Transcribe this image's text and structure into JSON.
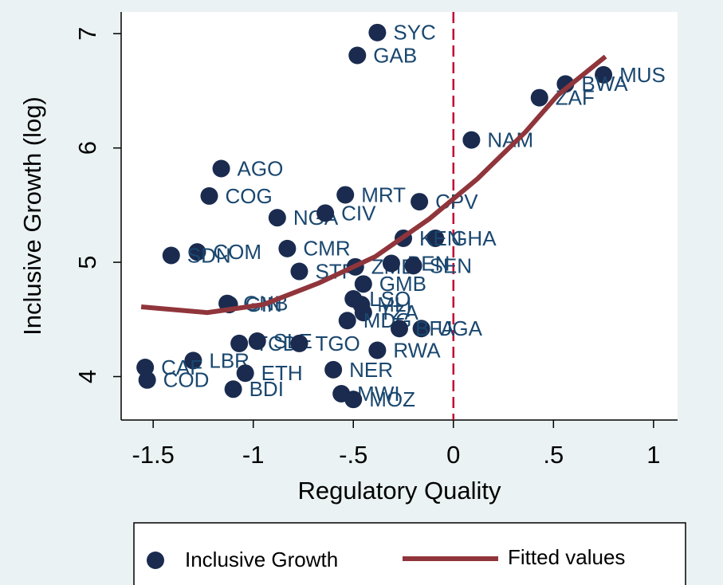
{
  "chart_data": {
    "type": "scatter",
    "x_label": "Regulatory Quality",
    "y_label": "Inclusive Growth (log)",
    "xlim": [
      -1.66,
      1.12
    ],
    "ylim": [
      3.62,
      7.19
    ],
    "xticks": [
      -1.5,
      -1,
      {
        "value": -0.5,
        "label": "-.5"
      },
      0,
      {
        "value": 0.5,
        "label": ".5"
      },
      1
    ],
    "yticks": [
      4,
      5,
      6,
      7
    ],
    "xline": 0,
    "xline_color": "#c10534",
    "series": [
      {
        "name": "Inclusive Growth",
        "type": "scatter",
        "color": "#1a2b4f",
        "label_color": "#1a476f",
        "point_labels": [
          "SYC",
          "GAB",
          "MUS",
          "BWA",
          "ZAF",
          "NAM",
          "AGO",
          "COG",
          "MRT",
          "CPV",
          "NGA",
          "CIV",
          "GHA",
          "KEN",
          "CMR",
          "COM",
          "SDN",
          "STP",
          "ZMB",
          "BEN",
          "SEN",
          "GMB",
          "GNB",
          "GIN",
          "LSO",
          "MLI",
          "TZA",
          "MDG",
          "TCD",
          "SLE",
          "TGO",
          "UGA",
          "BFA",
          "RWA",
          "LBR",
          "CAF",
          "COD",
          "ETH",
          "NER",
          "BDI",
          "MWI",
          "MOZ"
        ],
        "x": [
          -0.38,
          -0.48,
          0.75,
          0.56,
          0.43,
          0.09,
          -1.16,
          -1.22,
          -0.54,
          -0.17,
          -0.88,
          -0.64,
          -0.09,
          -0.25,
          -0.83,
          -1.28,
          -1.41,
          -0.77,
          -0.49,
          -0.31,
          -0.2,
          -0.45,
          -1.13,
          -1.12,
          -0.5,
          -0.46,
          -0.45,
          -0.53,
          -1.07,
          -0.98,
          -0.77,
          -0.16,
          -0.27,
          -0.38,
          -1.3,
          -1.54,
          -1.53,
          -1.04,
          -0.6,
          -1.1,
          -0.56,
          -0.5
        ],
        "values": [
          7.01,
          6.81,
          6.64,
          6.56,
          6.44,
          6.07,
          5.82,
          5.58,
          5.59,
          5.53,
          5.39,
          5.43,
          5.21,
          5.21,
          5.12,
          5.09,
          5.06,
          4.92,
          4.96,
          4.99,
          4.97,
          4.81,
          4.64,
          4.63,
          4.68,
          4.63,
          4.56,
          4.49,
          4.29,
          4.31,
          4.29,
          4.42,
          4.42,
          4.23,
          4.14,
          4.08,
          3.97,
          4.03,
          4.06,
          3.89,
          3.85,
          3.8
        ]
      },
      {
        "name": "Fitted values",
        "type": "line",
        "color": "#90353b",
        "x": [
          -1.56,
          -1.23,
          -0.95,
          -0.67,
          -0.39,
          -0.12,
          0.12,
          0.36,
          0.52,
          0.76
        ],
        "values": [
          4.61,
          4.56,
          4.63,
          4.82,
          5.05,
          5.38,
          5.73,
          6.14,
          6.46,
          6.8
        ]
      }
    ]
  }
}
